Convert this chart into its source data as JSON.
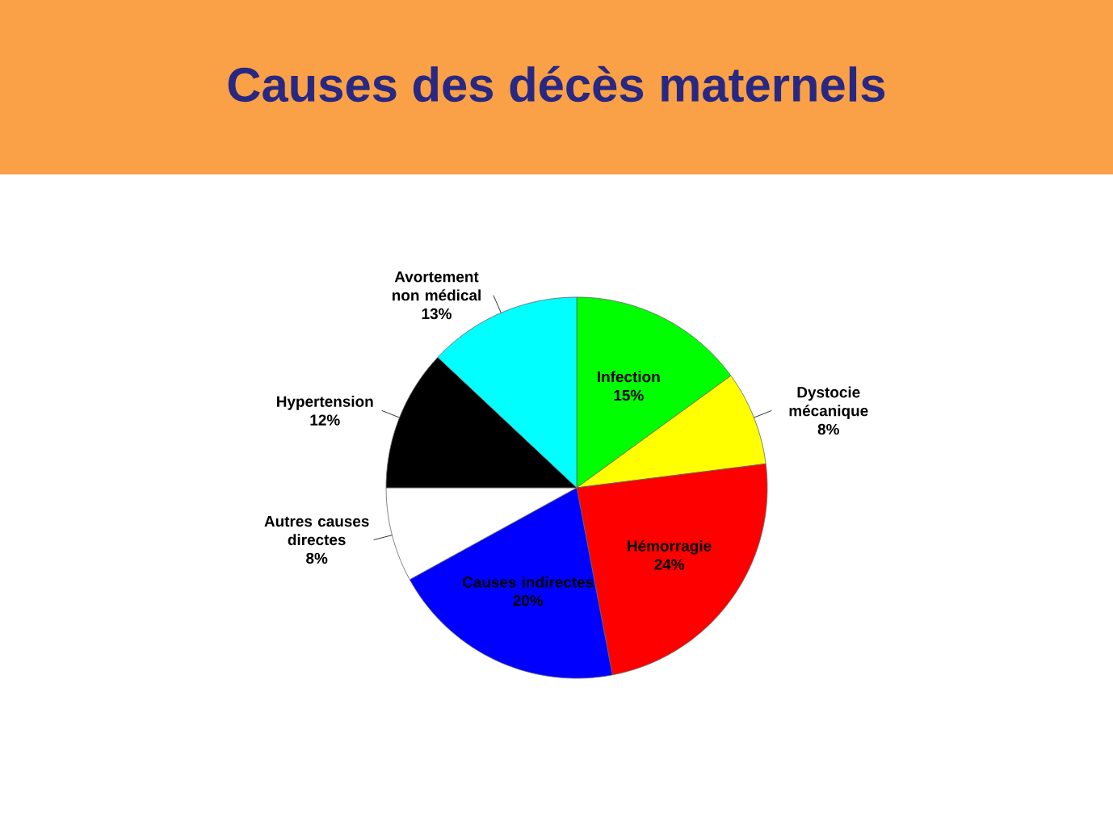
{
  "chart_data": {
    "type": "pie",
    "title": "Causes des décès maternels",
    "categories": [
      "Infection",
      "Dystocie mécanique",
      "Hémorragie",
      "Causes indirectes",
      "Autres causes directes",
      "Hypertension",
      "Avortement non médical"
    ],
    "values": [
      15,
      8,
      24,
      20,
      8,
      12,
      13
    ],
    "colors": [
      "#00ff00",
      "#ffff00",
      "#ff0000",
      "#0000ff",
      "#ffffff",
      "#000000",
      "#00ffff"
    ],
    "value_labels": [
      "15%",
      "8%",
      "24%",
      "20%",
      "8%",
      "12%",
      "13%"
    ]
  }
}
